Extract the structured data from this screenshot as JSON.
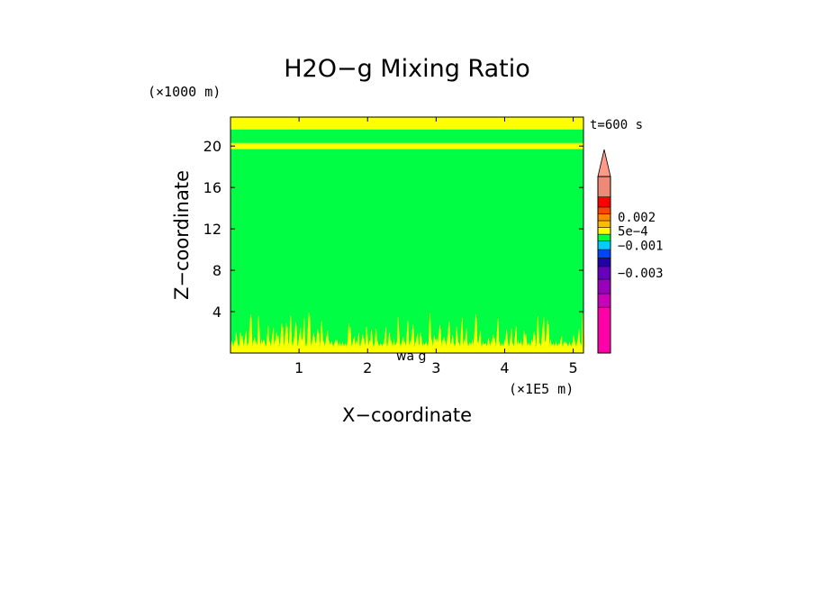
{
  "chart_data": {
    "type": "heatmap",
    "title": "H2O−g Mixing Ratio",
    "xlabel": "X−coordinate",
    "ylabel": "Z−coordinate",
    "x_unit": "(×1E5 m)",
    "y_unit": "(×1000 m)",
    "time_label": "t=600 s",
    "xlim": [
      0,
      5.15
    ],
    "ylim": [
      0,
      22.8
    ],
    "x_ticks": [
      1,
      2,
      3,
      4,
      5
    ],
    "x_tick_labels": [
      "1",
      "2",
      "3",
      "4",
      "5"
    ],
    "y_ticks": [
      4,
      8,
      12,
      16,
      20
    ],
    "y_tick_labels": [
      "4",
      "8",
      "12",
      "16",
      "20"
    ],
    "field": {
      "background_level": "green",
      "bands": [
        {
          "z_min": 0.0,
          "z_max": 0.6,
          "color": "#ffff00",
          "pattern": "dense-spikes"
        },
        {
          "z_min": 0.6,
          "z_max": 4.0,
          "color": "#ffff00",
          "pattern": "sparse-spikes"
        },
        {
          "z_min": 19.7,
          "z_max": 20.3,
          "color": "#ffff00",
          "pattern": "solid"
        },
        {
          "z_min": 21.6,
          "z_max": 22.8,
          "color": "#ffff00",
          "pattern": "solid"
        }
      ],
      "background_color": "#00ff44"
    },
    "colorbar": {
      "segments": [
        "#ff00aa",
        "#cc00bb",
        "#9900bb",
        "#6600bb",
        "#2200aa",
        "#0044ff",
        "#00ccff",
        "#00ff44",
        "#ffff00",
        "#ffbb00",
        "#ff8800",
        "#ff4400",
        "#ff0000",
        "#ee8877"
      ],
      "overflow_color": "#ff9988",
      "labels": [
        {
          "text": "0.002",
          "segment": 10.5
        },
        {
          "text": "5e−4",
          "segment": 8.5
        },
        {
          "text": "−0.001",
          "segment": 6.5
        },
        {
          "text": "−0.003",
          "segment": 3.5
        }
      ]
    },
    "axis_artifact": "wa g"
  }
}
